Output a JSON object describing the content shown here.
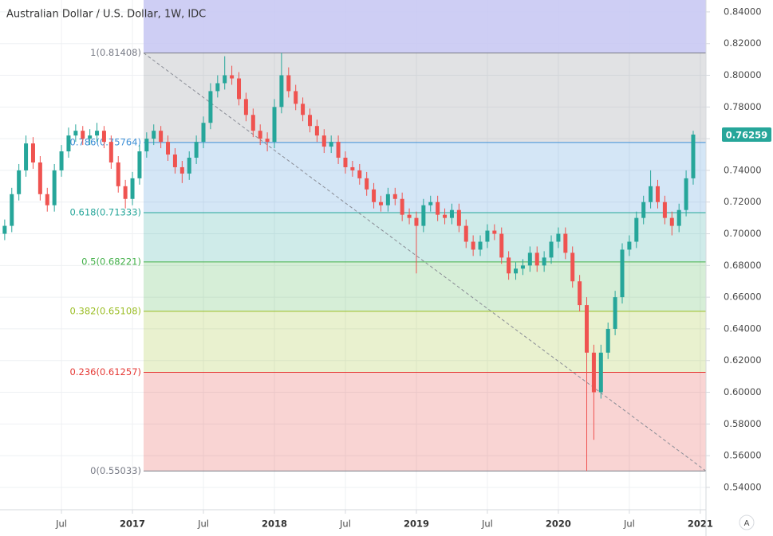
{
  "chart_data": {
    "type": "candlestick",
    "title": "Australian Dollar / U.S. Dollar, 1W, IDC",
    "up_color": "#26a69a",
    "down_color": "#ef5350",
    "grid": true,
    "xlim": [
      2016.067,
      2021.04
    ],
    "ylim": [
      0.5259,
      0.8475
    ],
    "xticks": [
      {
        "value": 2016.5,
        "label": "Jul"
      },
      2017,
      {
        "value": 2017.5,
        "label": "Jul"
      },
      2018,
      {
        "value": 2018.5,
        "label": "Jul"
      },
      2019,
      {
        "value": 2019.5,
        "label": "Jul"
      },
      2020,
      {
        "value": 2020.5,
        "label": "Jul"
      },
      2021
    ],
    "yticks": [
      {
        "value": 0.54,
        "label": "0.54000"
      },
      {
        "value": 0.56,
        "label": "0.56000"
      },
      {
        "value": 0.58,
        "label": "0.58000"
      },
      {
        "value": 0.6,
        "label": "0.60000"
      },
      {
        "value": 0.62,
        "label": "0.62000"
      },
      {
        "value": 0.64,
        "label": "0.64000"
      },
      {
        "value": 0.66,
        "label": "0.66000"
      },
      {
        "value": 0.68,
        "label": "0.68000"
      },
      {
        "value": 0.7,
        "label": "0.70000"
      },
      {
        "value": 0.72,
        "label": "0.72000"
      },
      {
        "value": 0.74,
        "label": "0.74000"
      },
      {
        "value": 0.76,
        "label": "0.76000"
      },
      {
        "value": 0.78,
        "label": "0.78000"
      },
      {
        "value": 0.8,
        "label": "0.80000"
      },
      {
        "value": 0.82,
        "label": "0.82000"
      },
      {
        "value": 0.84,
        "label": "0.84000"
      }
    ],
    "fib_levels": [
      {
        "label": "1(0.81408)",
        "value": 0.81408,
        "color": "#787b86"
      },
      {
        "label": "0.786(0.75764)",
        "value": 0.75764,
        "color": "#3d8fd6"
      },
      {
        "label": "0.618(0.71333)",
        "value": 0.71333,
        "color": "#26a69a"
      },
      {
        "label": "0.5(0.68221)",
        "value": 0.68221,
        "color": "#43b049"
      },
      {
        "label": "0.382(0.65108)",
        "value": 0.65108,
        "color": "#9bbd24"
      },
      {
        "label": "0.236(0.61257)",
        "value": 0.61257,
        "color": "#e53935"
      },
      {
        "label": "0(0.55033)",
        "value": 0.55033,
        "color": "#787b86"
      }
    ],
    "x": [
      2016.1,
      2016.15,
      2016.2,
      2016.25,
      2016.3,
      2016.35,
      2016.4,
      2016.45,
      2016.5,
      2016.55,
      2016.6,
      2016.65,
      2016.7,
      2016.75,
      2016.8,
      2016.85,
      2016.9,
      2016.95,
      2017.0,
      2017.05,
      2017.1,
      2017.15,
      2017.2,
      2017.25,
      2017.3,
      2017.35,
      2017.4,
      2017.45,
      2017.5,
      2017.55,
      2017.6,
      2017.65,
      2017.7,
      2017.75,
      2017.8,
      2017.85,
      2017.9,
      2017.95,
      2018.0,
      2018.05,
      2018.1,
      2018.15,
      2018.2,
      2018.25,
      2018.3,
      2018.35,
      2018.4,
      2018.45,
      2018.5,
      2018.55,
      2018.6,
      2018.65,
      2018.7,
      2018.75,
      2018.8,
      2018.85,
      2018.9,
      2018.95,
      2019.0,
      2019.05,
      2019.1,
      2019.15,
      2019.2,
      2019.25,
      2019.3,
      2019.35,
      2019.4,
      2019.45,
      2019.5,
      2019.55,
      2019.6,
      2019.65,
      2019.7,
      2019.75,
      2019.8,
      2019.85,
      2019.9,
      2019.95,
      2020.0,
      2020.05,
      2020.1,
      2020.15,
      2020.2,
      2020.25,
      2020.3,
      2020.35,
      2020.4,
      2020.45,
      2020.5,
      2020.55,
      2020.6,
      2020.65,
      2020.7,
      2020.75,
      2020.8,
      2020.85,
      2020.9,
      2020.95
    ],
    "open": [
      0.7,
      0.705,
      0.725,
      0.74,
      0.757,
      0.745,
      0.725,
      0.718,
      0.74,
      0.752,
      0.762,
      0.765,
      0.76,
      0.762,
      0.765,
      0.758,
      0.745,
      0.73,
      0.722,
      0.735,
      0.752,
      0.76,
      0.765,
      0.758,
      0.75,
      0.742,
      0.738,
      0.748,
      0.758,
      0.77,
      0.79,
      0.795,
      0.8,
      0.798,
      0.785,
      0.775,
      0.765,
      0.76,
      0.758,
      0.78,
      0.8,
      0.79,
      0.782,
      0.775,
      0.768,
      0.762,
      0.755,
      0.758,
      0.748,
      0.742,
      0.74,
      0.735,
      0.728,
      0.72,
      0.718,
      0.725,
      0.722,
      0.712,
      0.71,
      0.705,
      0.718,
      0.72,
      0.712,
      0.71,
      0.715,
      0.705,
      0.695,
      0.69,
      0.695,
      0.702,
      0.7,
      0.685,
      0.675,
      0.678,
      0.68,
      0.688,
      0.68,
      0.685,
      0.695,
      0.7,
      0.688,
      0.67,
      0.655,
      0.625,
      0.6,
      0.625,
      0.64,
      0.66,
      0.69,
      0.695,
      0.71,
      0.72,
      0.73,
      0.72,
      0.71,
      0.705,
      0.715,
      0.735
    ],
    "high": [
      0.709,
      0.729,
      0.744,
      0.762,
      0.761,
      0.749,
      0.729,
      0.744,
      0.756,
      0.767,
      0.769,
      0.768,
      0.766,
      0.77,
      0.768,
      0.762,
      0.749,
      0.734,
      0.739,
      0.756,
      0.764,
      0.769,
      0.768,
      0.762,
      0.754,
      0.746,
      0.752,
      0.762,
      0.774,
      0.795,
      0.8,
      0.812,
      0.806,
      0.802,
      0.789,
      0.779,
      0.769,
      0.764,
      0.785,
      0.81408,
      0.805,
      0.794,
      0.786,
      0.779,
      0.772,
      0.766,
      0.762,
      0.762,
      0.752,
      0.746,
      0.744,
      0.739,
      0.732,
      0.724,
      0.729,
      0.729,
      0.726,
      0.716,
      0.714,
      0.722,
      0.724,
      0.724,
      0.716,
      0.719,
      0.719,
      0.709,
      0.699,
      0.699,
      0.706,
      0.706,
      0.704,
      0.689,
      0.682,
      0.684,
      0.692,
      0.692,
      0.689,
      0.699,
      0.704,
      0.704,
      0.692,
      0.674,
      0.66,
      0.63,
      0.63,
      0.644,
      0.664,
      0.694,
      0.699,
      0.714,
      0.724,
      0.74,
      0.734,
      0.724,
      0.714,
      0.719,
      0.74,
      0.765
    ],
    "low": [
      0.696,
      0.701,
      0.721,
      0.736,
      0.741,
      0.721,
      0.714,
      0.714,
      0.736,
      0.748,
      0.758,
      0.756,
      0.756,
      0.758,
      0.754,
      0.741,
      0.726,
      0.716,
      0.718,
      0.731,
      0.748,
      0.756,
      0.754,
      0.746,
      0.738,
      0.732,
      0.734,
      0.744,
      0.754,
      0.766,
      0.786,
      0.791,
      0.794,
      0.781,
      0.771,
      0.761,
      0.756,
      0.752,
      0.754,
      0.776,
      0.786,
      0.778,
      0.771,
      0.764,
      0.758,
      0.751,
      0.751,
      0.744,
      0.738,
      0.736,
      0.731,
      0.724,
      0.716,
      0.714,
      0.714,
      0.718,
      0.708,
      0.706,
      0.675,
      0.701,
      0.714,
      0.708,
      0.706,
      0.706,
      0.701,
      0.691,
      0.686,
      0.686,
      0.691,
      0.696,
      0.681,
      0.671,
      0.671,
      0.674,
      0.676,
      0.676,
      0.676,
      0.681,
      0.691,
      0.684,
      0.666,
      0.651,
      0.55033,
      0.57,
      0.596,
      0.621,
      0.636,
      0.656,
      0.686,
      0.691,
      0.706,
      0.716,
      0.716,
      0.706,
      0.699,
      0.701,
      0.711,
      0.731
    ],
    "close": [
      0.705,
      0.725,
      0.74,
      0.757,
      0.745,
      0.725,
      0.718,
      0.74,
      0.752,
      0.762,
      0.765,
      0.76,
      0.762,
      0.765,
      0.758,
      0.745,
      0.73,
      0.722,
      0.735,
      0.752,
      0.76,
      0.765,
      0.758,
      0.75,
      0.742,
      0.738,
      0.748,
      0.758,
      0.77,
      0.79,
      0.795,
      0.8,
      0.798,
      0.785,
      0.775,
      0.765,
      0.76,
      0.758,
      0.78,
      0.8,
      0.79,
      0.782,
      0.775,
      0.768,
      0.762,
      0.755,
      0.758,
      0.748,
      0.742,
      0.74,
      0.735,
      0.728,
      0.72,
      0.718,
      0.725,
      0.722,
      0.712,
      0.71,
      0.705,
      0.718,
      0.72,
      0.712,
      0.71,
      0.715,
      0.705,
      0.695,
      0.69,
      0.695,
      0.702,
      0.7,
      0.685,
      0.675,
      0.678,
      0.68,
      0.688,
      0.68,
      0.685,
      0.695,
      0.7,
      0.688,
      0.67,
      0.655,
      0.625,
      0.6,
      0.625,
      0.64,
      0.66,
      0.69,
      0.695,
      0.71,
      0.72,
      0.73,
      0.72,
      0.71,
      0.705,
      0.715,
      0.735,
      0.76259
    ]
  },
  "ui": {
    "auto_scale_button": "A"
  }
}
